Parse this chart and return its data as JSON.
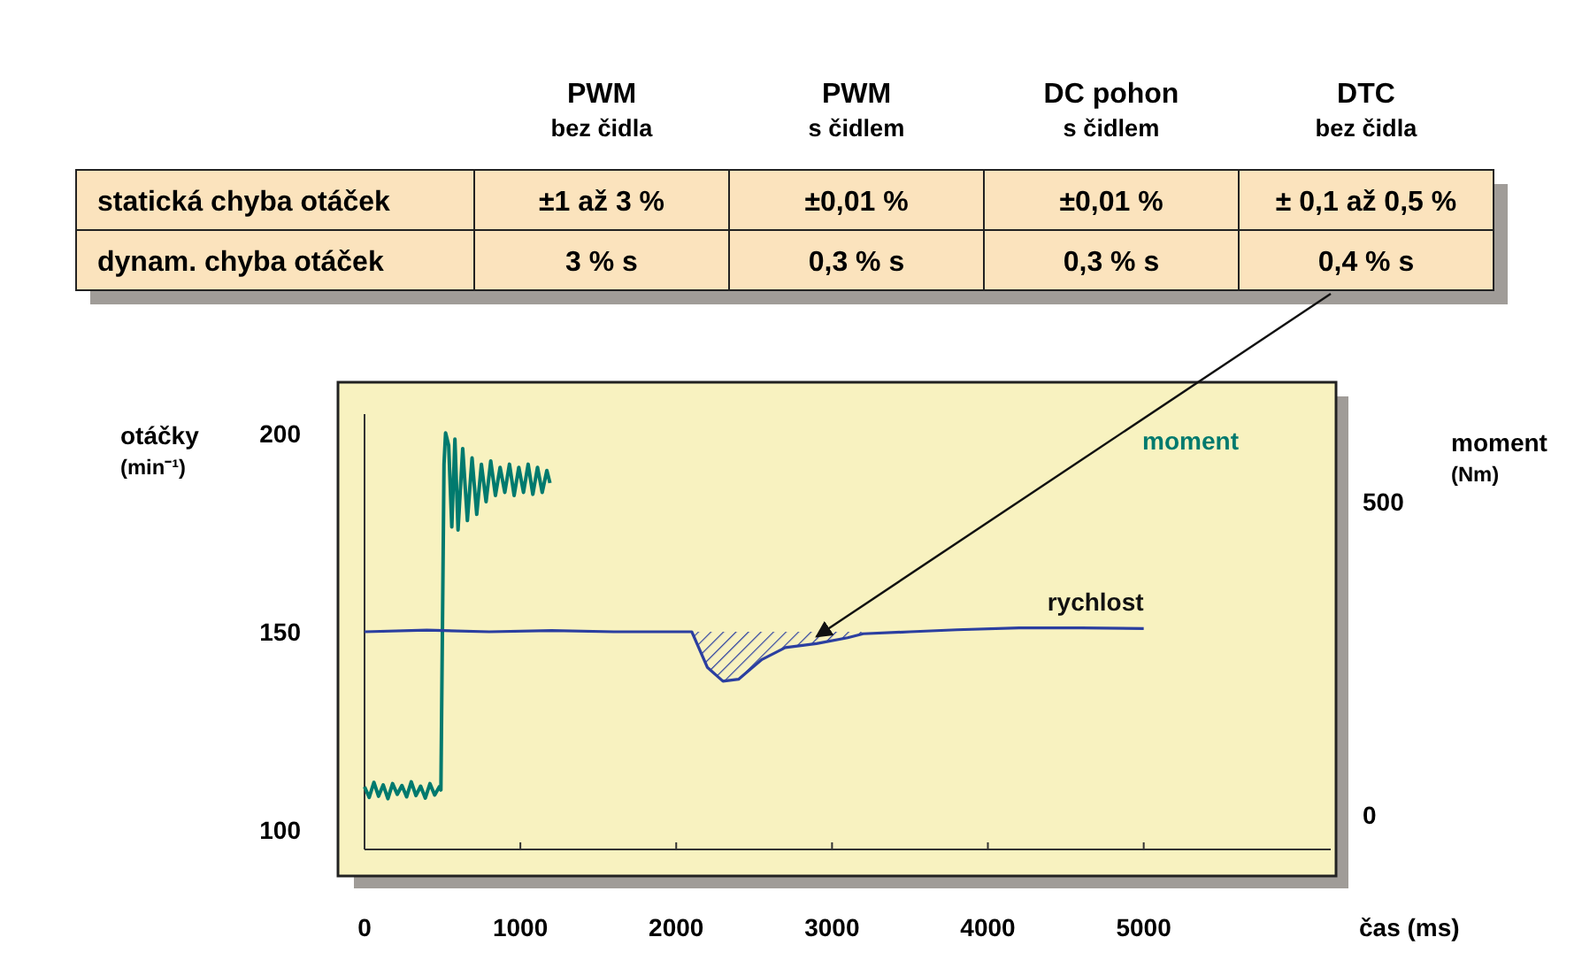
{
  "chart_data": [
    {
      "type": "other",
      "categories": [
        "PWM\nbez čidla",
        "PWM\ns čidlem",
        "DC pohon\ns čidlem",
        "DTC\nbez čidla"
      ],
      "y_categories": [
        "statická chyba otáček",
        "dynam. chyba otáček"
      ],
      "cell_labels": [
        [
          "±1 až 3 %",
          "±0,01 %",
          "±0,01 %",
          "± 0,1 až 0,5 %"
        ],
        [
          "3 % s",
          "0,3 % s",
          "0,3 % s",
          "0,4 % s"
        ]
      ]
    },
    {
      "type": "line",
      "xlabel": "čas (ms)",
      "ylabel": "otáčky\n(min⁻¹)",
      "y2label": "moment\n(Nm)",
      "xlim": [
        0,
        6200
      ],
      "xticks": [
        0,
        1000,
        2000,
        3000,
        4000,
        5000
      ],
      "ylim": [
        95,
        205
      ],
      "yticks": [
        100,
        150,
        200
      ],
      "y2lim": [
        -55,
        640
      ],
      "y2ticks": [
        0,
        500
      ],
      "grid": false,
      "series": [
        {
          "name": "moment",
          "color": "#007a6e",
          "axis": "y2",
          "x": [
            0,
            30,
            60,
            90,
            120,
            150,
            180,
            210,
            240,
            270,
            300,
            330,
            360,
            390,
            420,
            450,
            480,
            490,
            500,
            510,
            520,
            540,
            560,
            580,
            600,
            630,
            660,
            690,
            720,
            750,
            780,
            810,
            840,
            870,
            900,
            930,
            960,
            990,
            1020,
            1050,
            1080,
            1110,
            1140,
            1170,
            1190
          ],
          "values": [
            45,
            28,
            52,
            30,
            48,
            26,
            50,
            33,
            47,
            29,
            53,
            31,
            46,
            27,
            50,
            32,
            45,
            40,
            300,
            560,
            610,
            590,
            460,
            600,
            455,
            585,
            470,
            570,
            480,
            560,
            500,
            565,
            510,
            555,
            515,
            560,
            510,
            555,
            515,
            560,
            512,
            555,
            515,
            550,
            530
          ]
        },
        {
          "name": "rychlost",
          "color": "#2b3fa0",
          "x": [
            0,
            400,
            800,
            1200,
            1600,
            2000,
            2100,
            2200,
            2300,
            2400,
            2550,
            2700,
            2900,
            3100,
            3200,
            3500,
            3800,
            4200,
            4600,
            5000
          ],
          "values": [
            150,
            150.4,
            150,
            150.3,
            150,
            150,
            150,
            141,
            137.5,
            138,
            143,
            146,
            147,
            148.5,
            149.5,
            150,
            150.5,
            151,
            151,
            150.8
          ],
          "lower": [
            null,
            null,
            null,
            null,
            null,
            null,
            150,
            141,
            137.5,
            138,
            143,
            146,
            147,
            148.5,
            149.5,
            null,
            null,
            null,
            null,
            null
          ],
          "upper": [
            null,
            null,
            null,
            null,
            null,
            null,
            150,
            150,
            150,
            150,
            150,
            150,
            150,
            150,
            150,
            null,
            null,
            null,
            null,
            null
          ]
        }
      ]
    }
  ]
}
